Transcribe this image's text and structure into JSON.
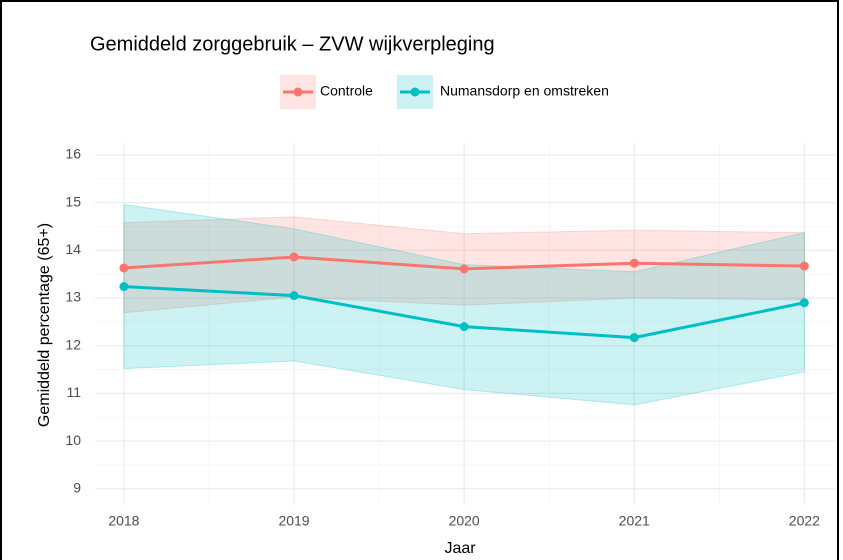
{
  "chart_data": {
    "type": "line",
    "title": "Gemiddeld zorggebruik – ZVW wijkverpleging",
    "x_label": "Jaar",
    "y_label": "Gemiddeld percentage (65+)",
    "x": [
      2018,
      2019,
      2020,
      2021,
      2022
    ],
    "series": [
      {
        "name": "Controle",
        "color": "#F8766D",
        "values": [
          13.63,
          13.86,
          13.61,
          13.73,
          13.67
        ],
        "lower": [
          12.69,
          13.02,
          12.85,
          13.0,
          12.96
        ],
        "upper": [
          14.58,
          14.7,
          14.35,
          14.42,
          14.37
        ]
      },
      {
        "name": "Numansdorp en omstreken",
        "color": "#00BFC4",
        "values": [
          13.24,
          13.05,
          12.4,
          12.17,
          12.9
        ],
        "lower": [
          11.52,
          11.68,
          11.08,
          10.76,
          11.45
        ],
        "upper": [
          14.96,
          14.45,
          13.7,
          13.55,
          14.37
        ]
      }
    ],
    "xlim": [
      2017.83,
      2022.18
    ],
    "xticks": [
      2018,
      2019,
      2020,
      2021,
      2022
    ],
    "ylim": [
      8.66,
      16.25
    ],
    "yticks": [
      9,
      10,
      11,
      12,
      13,
      14,
      15,
      16
    ],
    "grid": true,
    "minor_grid": true,
    "legend": "top"
  }
}
